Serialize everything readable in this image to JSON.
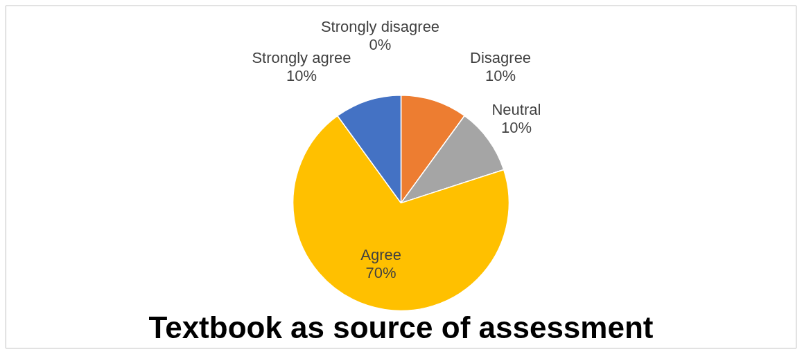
{
  "chart_data": {
    "type": "pie",
    "title": "Textbook as source of assessment",
    "categories": [
      "Strongly disagree",
      "Disagree",
      "Neutral",
      "Agree",
      "Strongly agree"
    ],
    "values": [
      0,
      10,
      10,
      70,
      10
    ],
    "value_labels": [
      "0%",
      "10%",
      "10%",
      "70%",
      "10%"
    ],
    "colors": [
      "#5b9bd5",
      "#ed7d31",
      "#a5a5a5",
      "#ffc000",
      "#4472c4"
    ],
    "legend": false
  }
}
